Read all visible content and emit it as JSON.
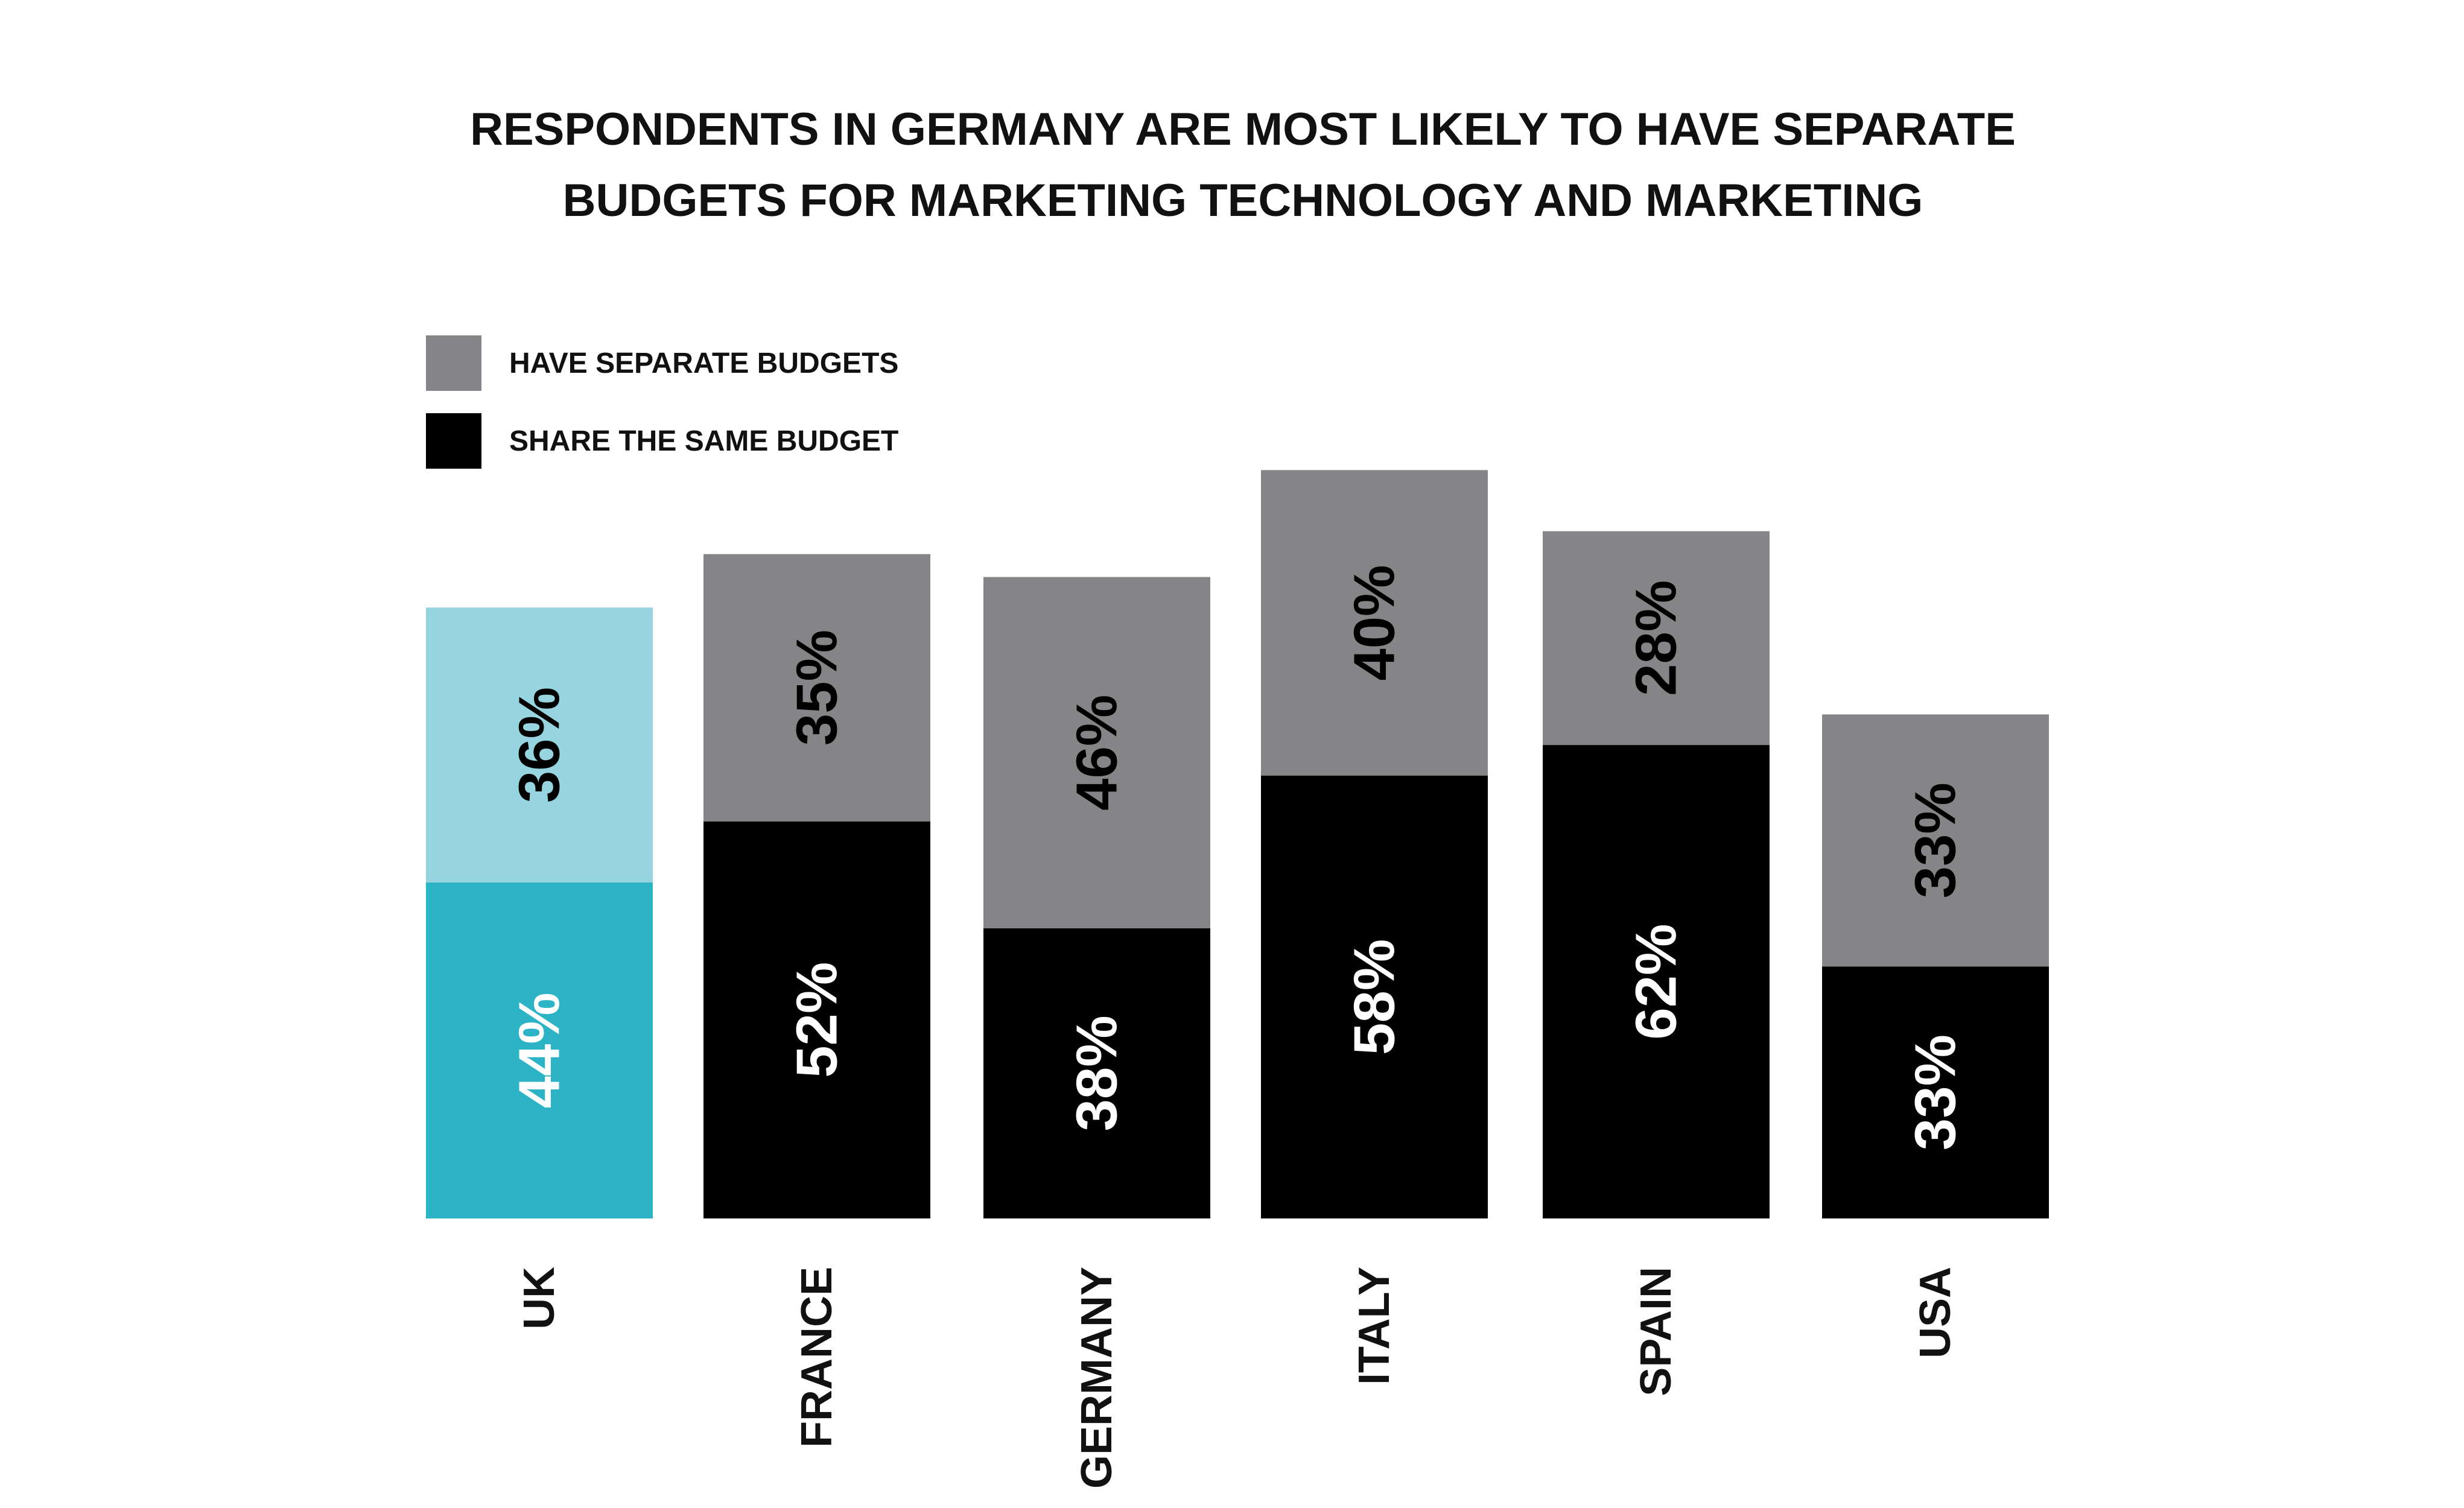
{
  "chart_data": {
    "type": "bar",
    "stacked": true,
    "title_lines": [
      "RESPONDENTS IN GERMANY ARE MOST LIKELY TO HAVE SEPARATE",
      "BUDGETS FOR MARKETING TECHNOLOGY AND MARKETING"
    ],
    "categories": [
      "UK",
      "FRANCE",
      "GERMANY",
      "ITALY",
      "SPAIN",
      "USA"
    ],
    "series": [
      {
        "name": "SHARE THE SAME BUDGET",
        "values": [
          44,
          52,
          38,
          58,
          62,
          33
        ],
        "labels": [
          "44%",
          "52%",
          "38%",
          "58%",
          "62%",
          "33%"
        ],
        "color": "#000000",
        "label_color": "#ffffff"
      },
      {
        "name": "HAVE SEPARATE BUDGETS",
        "values": [
          36,
          35,
          46,
          40,
          28,
          33
        ],
        "labels": [
          "36%",
          "35%",
          "46%",
          "40%",
          "28%",
          "33%"
        ],
        "color": "#858587",
        "label_color": "#000000"
      }
    ],
    "highlight": {
      "category": "UK",
      "colors": {
        "SHARE THE SAME BUDGET": "#2db3c6",
        "HAVE SEPARATE BUDGETS": "#96d4e0"
      },
      "label_colors": {
        "SHARE THE SAME BUDGET": "#ffffff",
        "HAVE SEPARATE BUDGETS": "#000000"
      }
    },
    "legend": {
      "placement": "top-left",
      "entries": [
        {
          "label": "HAVE SEPARATE BUDGETS",
          "color": "#858587"
        },
        {
          "label": "SHARE THE SAME BUDGET",
          "color": "#000000"
        }
      ]
    },
    "ylim": [
      0,
      100
    ],
    "grid": false,
    "label_orientation": "vertical"
  }
}
